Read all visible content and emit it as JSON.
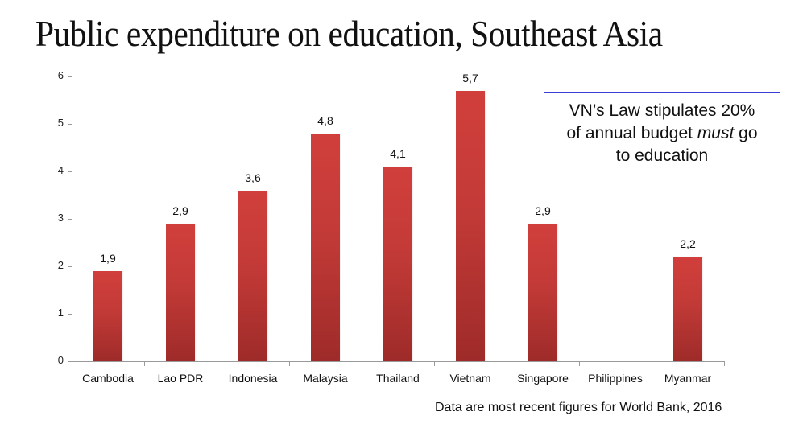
{
  "title": "Public expenditure on education, Southeast Asia",
  "annotation": {
    "line1": "VN’s Law stipulates 20%",
    "line2_pre": "of annual budget ",
    "line2_em": "must",
    "line2_post": " go",
    "line3": "to education",
    "border_color": "#3b3bd6"
  },
  "source_note": "Data are most recent figures for World Bank, 2016",
  "colors": {
    "bar_top": "#d13f3c",
    "bar_bottom": "#9e2b29",
    "axis": "#9a9a9a"
  },
  "chart_data": {
    "type": "bar",
    "title": "Public expenditure on education, Southeast Asia",
    "xlabel": "",
    "ylabel": "",
    "ylim": [
      0,
      6
    ],
    "yticks": [
      0,
      1,
      2,
      3,
      4,
      5,
      6
    ],
    "grid": false,
    "legend": "none",
    "categories": [
      "Cambodia",
      "Lao PDR",
      "Indonesia",
      "Malaysia",
      "Thailand",
      "Vietnam",
      "Singapore",
      "Philippines",
      "Myanmar"
    ],
    "values": [
      1.9,
      2.9,
      3.6,
      4.8,
      4.1,
      5.7,
      2.9,
      null,
      2.2
    ],
    "value_labels": [
      "1,9",
      "2,9",
      "3,6",
      "4,8",
      "4,1",
      "5,7",
      "2,9",
      "",
      "2,2"
    ],
    "annotations": [
      "VN’s Law stipulates 20% of annual budget must go to education",
      "Data are most recent figures for World Bank, 2016"
    ]
  }
}
